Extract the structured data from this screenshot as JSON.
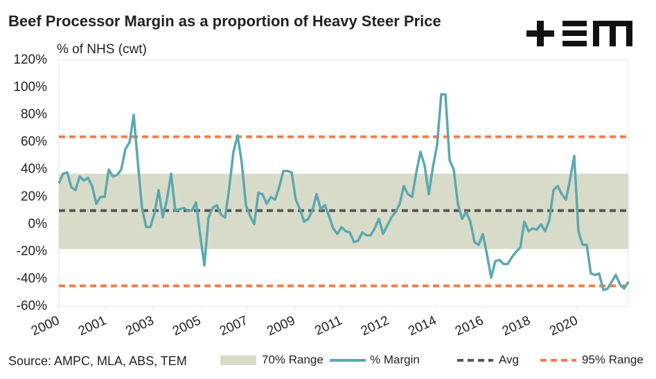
{
  "chart_data": {
    "type": "line",
    "title": "Beef Processor Margin as a proportion of Heavy Steer Price",
    "y_label": "% of NHS (cwt)",
    "source": "Source: AMPC, MLA, ABS, TEM",
    "xlim": [
      0,
      137
    ],
    "xticks": [
      {
        "value": 0,
        "label": "2000"
      },
      {
        "value": 11.3,
        "label": "2001"
      },
      {
        "value": 22.7,
        "label": "2003"
      },
      {
        "value": 34,
        "label": "2005"
      },
      {
        "value": 45.3,
        "label": "2007"
      },
      {
        "value": 56.7,
        "label": "2009"
      },
      {
        "value": 68,
        "label": "2011"
      },
      {
        "value": 79.3,
        "label": "2012"
      },
      {
        "value": 90.7,
        "label": "2014"
      },
      {
        "value": 102,
        "label": "2016"
      },
      {
        "value": 113.3,
        "label": "2018"
      },
      {
        "value": 124.7,
        "label": "2020"
      }
    ],
    "ylim": [
      -60,
      120
    ],
    "yticks": [
      {
        "value": -60,
        "label": "-60%"
      },
      {
        "value": -40,
        "label": "-40%"
      },
      {
        "value": -20,
        "label": "-20%"
      },
      {
        "value": 0,
        "label": "0%"
      },
      {
        "value": 20,
        "label": "20%"
      },
      {
        "value": 40,
        "label": "40%"
      },
      {
        "value": 60,
        "label": "60%"
      },
      {
        "value": 80,
        "label": "80%"
      },
      {
        "value": 100,
        "label": "100%"
      },
      {
        "value": 120,
        "label": "120%"
      }
    ],
    "bands": [
      {
        "name": "70% Range",
        "color": "#d9dbc9",
        "range": [
          -18,
          37
        ]
      }
    ],
    "series": [
      {
        "name": "% Margin",
        "color": "#5ba8b0",
        "values": [
          30,
          37,
          38,
          27,
          25,
          35,
          32,
          34,
          28,
          15,
          20,
          20,
          40,
          35,
          36,
          40,
          55,
          60,
          80,
          45,
          12,
          -2,
          -2,
          8,
          25,
          5,
          18,
          37,
          10,
          11,
          12,
          10,
          10,
          16,
          -8,
          -30,
          5,
          12,
          14,
          7,
          5,
          27,
          53,
          65,
          45,
          14,
          6,
          0,
          23,
          22,
          15,
          20,
          18,
          27,
          39,
          39,
          38,
          18,
          11,
          2,
          4,
          10,
          22,
          11,
          14,
          6,
          -3,
          -7,
          -2,
          -5,
          -6,
          -13,
          -12,
          -6,
          -8,
          -8,
          -3,
          4,
          -7,
          -1,
          5,
          9,
          15,
          28,
          22,
          20,
          38,
          53,
          43,
          22,
          42,
          58,
          95,
          95,
          47,
          40,
          15,
          4,
          9,
          2,
          -13,
          -15,
          -7,
          -22,
          -39,
          -27,
          -26,
          -29,
          -29,
          -24,
          -20,
          -17,
          2,
          -5,
          -3,
          -4,
          0,
          -5,
          3,
          25,
          28,
          22,
          18,
          33,
          50,
          -5,
          -15,
          -15,
          -36,
          -37,
          -36,
          -48,
          -47,
          -42,
          -37,
          -44,
          -47,
          -42
        ]
      }
    ],
    "reference_lines": [
      {
        "name": "Avg",
        "color": "#555555",
        "values": [
          10
        ]
      },
      {
        "name": "95% Range",
        "color": "#f47c4c",
        "values": [
          -45,
          64
        ]
      }
    ]
  }
}
